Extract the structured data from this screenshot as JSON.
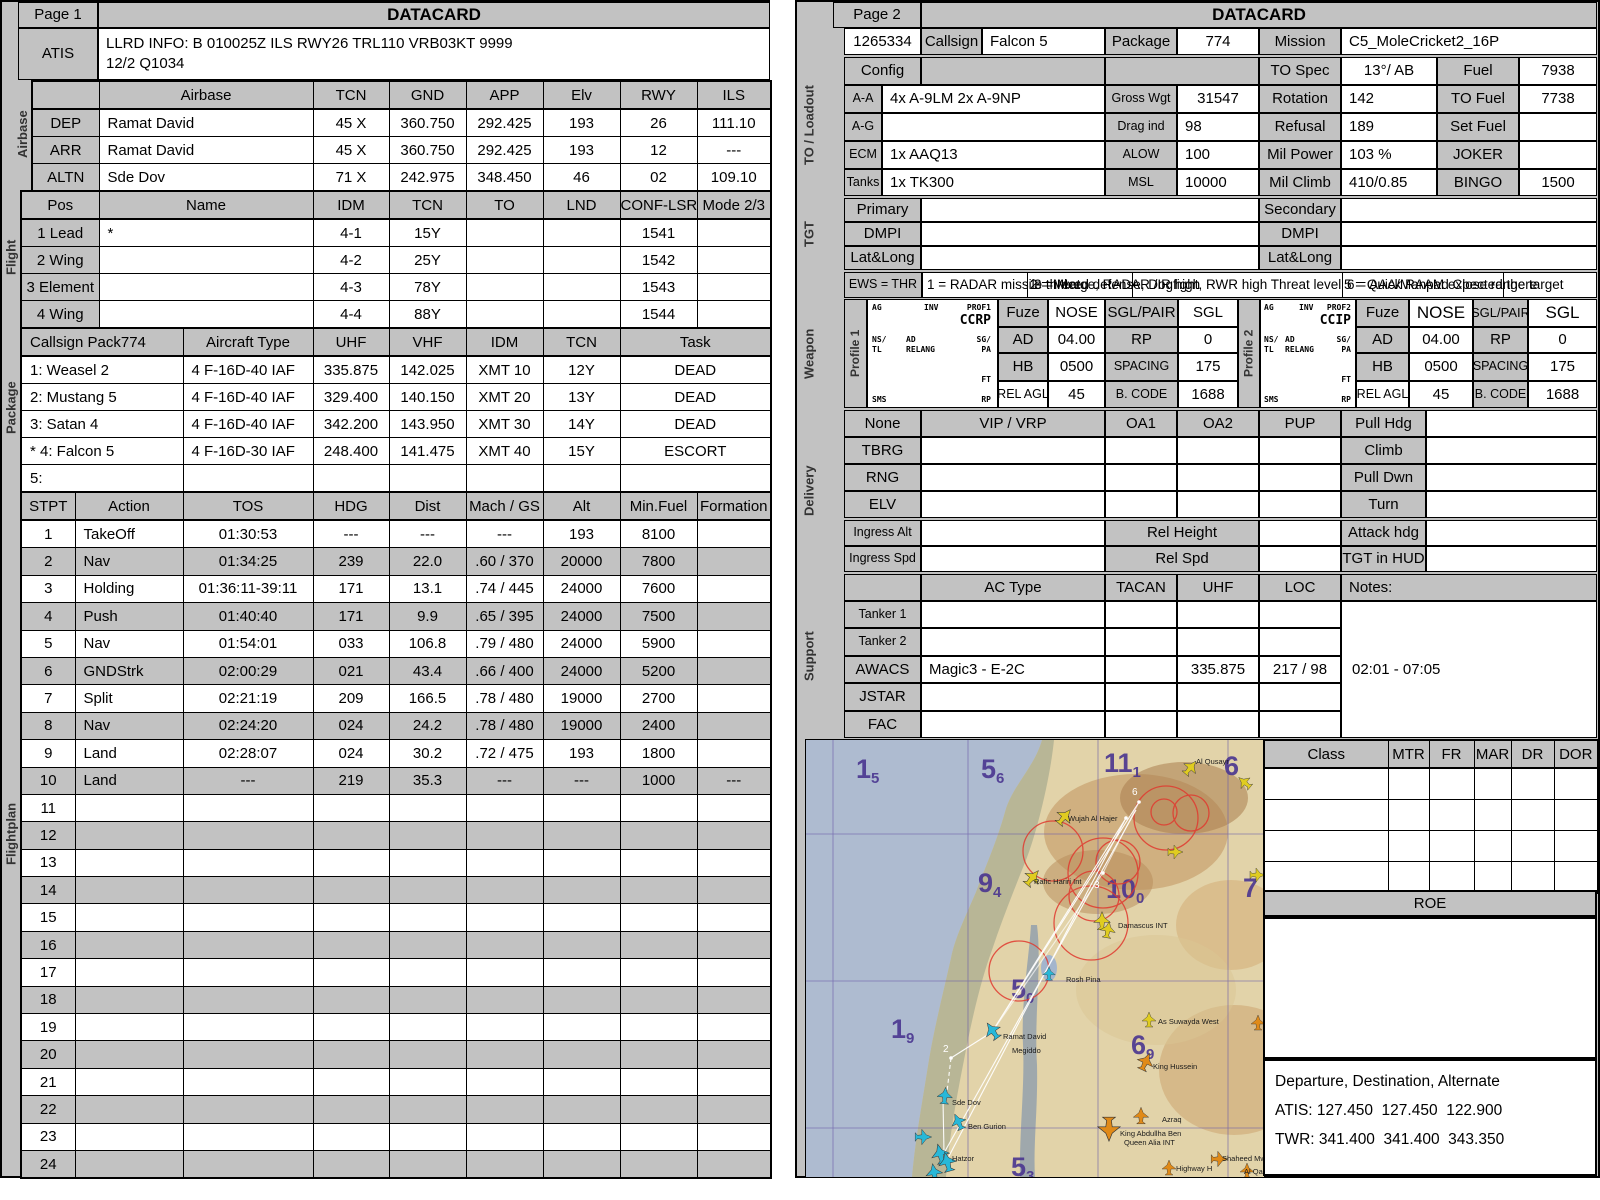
{
  "colors": {
    "panel_gray": "#c2c2c2",
    "cell_white": "#ffffff",
    "border_black": "#000000",
    "map_sea": "#aebbd0",
    "map_land": "#e2d3a9",
    "threat_red": "#e03a30",
    "grid_purple": "#4a3590",
    "route_white": "#ffffff",
    "cyan_icon": "#28b8d8",
    "yellow_icon": "#e0cc20",
    "orange_icon": "#e08a18"
  },
  "page1": {
    "header": {
      "page_label": "Page 1",
      "title": "DATACARD"
    },
    "atis": {
      "label": "ATIS",
      "line1": "LLRD INFO: B 010025Z ILS RWY26 TRL110 VRB03KT 9999",
      "line2": "12/2 Q1034"
    },
    "airbase": {
      "rail": "Airbase",
      "headers": [
        "",
        "Airbase",
        "TCN",
        "GND",
        "APP",
        "Elv",
        "RWY",
        "ILS"
      ],
      "rows": [
        [
          "DEP",
          "Ramat David",
          "45 X",
          "360.750",
          "292.425",
          "193",
          "26",
          "111.10"
        ],
        [
          "ARR",
          "Ramat David",
          "45 X",
          "360.750",
          "292.425",
          "193",
          "12",
          "---"
        ],
        [
          "ALTN",
          "Sde Dov",
          "71 X",
          "242.975",
          "348.450",
          "46",
          "02",
          "109.10"
        ]
      ]
    },
    "flight": {
      "rail": "Flight",
      "headers": [
        "Pos",
        "Name",
        "IDM",
        "TCN",
        "TO",
        "LND",
        "CONF-LSR",
        "Mode 2/3"
      ],
      "rows": [
        [
          "1 Lead",
          "*",
          "4-1",
          "15Y",
          "",
          "",
          "1541",
          ""
        ],
        [
          "2 Wing",
          "",
          "4-2",
          "25Y",
          "",
          "",
          "1542",
          ""
        ],
        [
          "3 Element",
          "",
          "4-3",
          "78Y",
          "",
          "",
          "1543",
          ""
        ],
        [
          "4 Wing",
          "",
          "4-4",
          "88Y",
          "",
          "",
          "1544",
          ""
        ]
      ]
    },
    "package": {
      "rail": "Package",
      "callsign_label": "Callsign Pack",
      "pack_number": "774",
      "headers": [
        "Aircraft Type",
        "UHF",
        "VHF",
        "IDM",
        "TCN",
        "Task"
      ],
      "rows": [
        [
          "1: Weasel 2",
          "4 F-16D-40 IAF",
          "335.875",
          "142.025",
          "XMT 10",
          "12Y",
          "DEAD"
        ],
        [
          "2: Mustang 5",
          "4 F-16D-40 IAF",
          "329.400",
          "140.150",
          "XMT 20",
          "13Y",
          "DEAD"
        ],
        [
          "3: Satan 4",
          "4 F-16D-40 IAF",
          "342.200",
          "143.950",
          "XMT 30",
          "14Y",
          "DEAD"
        ],
        [
          "* 4: Falcon 5",
          "4 F-16D-30 IAF",
          "248.400",
          "141.475",
          "XMT 40",
          "15Y",
          "ESCORT"
        ],
        [
          "5:",
          "",
          "",
          "",
          "",
          "",
          ""
        ]
      ]
    },
    "flightplan": {
      "rail": "Flightplan",
      "headers": [
        "STPT",
        "Action",
        "TOS",
        "HDG",
        "Dist",
        "Mach / GS",
        "Alt",
        "Min.Fuel",
        "Formation"
      ],
      "rows": [
        [
          "1",
          "TakeOff",
          "01:30:53",
          "---",
          "---",
          "---",
          "193",
          "8100",
          ""
        ],
        [
          "2",
          "Nav",
          "01:34:25",
          "239",
          "22.0",
          ".60 / 370",
          "20000",
          "7800",
          ""
        ],
        [
          "3",
          "Holding",
          "01:36:11-39:11",
          "171",
          "13.1",
          ".74 / 445",
          "24000",
          "7600",
          ""
        ],
        [
          "4",
          "Push",
          "01:40:40",
          "171",
          "9.9",
          ".65 / 395",
          "24000",
          "7500",
          ""
        ],
        [
          "5",
          "Nav",
          "01:54:01",
          "033",
          "106.8",
          ".79 / 480",
          "24000",
          "5900",
          ""
        ],
        [
          "6",
          "GNDStrk",
          "02:00:29",
          "021",
          "43.4",
          ".66 / 400",
          "24000",
          "5200",
          ""
        ],
        [
          "7",
          "Split",
          "02:21:19",
          "209",
          "166.5",
          ".78 / 480",
          "19000",
          "2700",
          ""
        ],
        [
          "8",
          "Nav",
          "02:24:20",
          "024",
          "24.2",
          ".78 / 480",
          "19000",
          "2400",
          ""
        ],
        [
          "9",
          "Land",
          "02:28:07",
          "024",
          "30.2",
          ".72 / 475",
          "193",
          "1800",
          ""
        ],
        [
          "10",
          "Land",
          "---",
          "219",
          "35.3",
          "---",
          "---",
          "1000",
          "---"
        ],
        [
          "11",
          "",
          "",
          "",
          "",
          "",
          "",
          "",
          ""
        ],
        [
          "12",
          "",
          "",
          "",
          "",
          "",
          "",
          "",
          ""
        ],
        [
          "13",
          "",
          "",
          "",
          "",
          "",
          "",
          "",
          ""
        ],
        [
          "14",
          "",
          "",
          "",
          "",
          "",
          "",
          "",
          ""
        ],
        [
          "15",
          "",
          "",
          "",
          "",
          "",
          "",
          "",
          ""
        ],
        [
          "16",
          "",
          "",
          "",
          "",
          "",
          "",
          "",
          ""
        ],
        [
          "17",
          "",
          "",
          "",
          "",
          "",
          "",
          "",
          ""
        ],
        [
          "18",
          "",
          "",
          "",
          "",
          "",
          "",
          "",
          ""
        ],
        [
          "19",
          "",
          "",
          "",
          "",
          "",
          "",
          "",
          ""
        ],
        [
          "20",
          "",
          "",
          "",
          "",
          "",
          "",
          "",
          ""
        ],
        [
          "21",
          "",
          "",
          "",
          "",
          "",
          "",
          "",
          ""
        ],
        [
          "22",
          "",
          "",
          "",
          "",
          "",
          "",
          "",
          ""
        ],
        [
          "23",
          "",
          "",
          "",
          "",
          "",
          "",
          "",
          ""
        ],
        [
          "24",
          "",
          "",
          "",
          "",
          "",
          "",
          "",
          ""
        ]
      ]
    }
  },
  "page2": {
    "header": {
      "page_label": "Page 2",
      "title": "DATACARD"
    },
    "id_row": {
      "id": "1265334",
      "callsign_label": "Callsign",
      "callsign": "Falcon 5",
      "package_label": "Package",
      "package": "774",
      "mission_label": "Mission",
      "mission": "C5_MoleCricket2_16P"
    },
    "loadout": {
      "rail": "TO / Loadout",
      "config_label": "Config",
      "to_spec_label": "TO Spec",
      "to_spec": "13°/ AB",
      "fuel_label": "Fuel",
      "fuel": "7938",
      "rows": [
        [
          "A-A",
          "4x A-9LM 2x A-9NP",
          "Gross Wgt",
          "31547",
          "Rotation",
          "142",
          "TO Fuel",
          "7738"
        ],
        [
          "A-G",
          "",
          "Drag ind",
          "98",
          "Refusal",
          "189",
          "Set Fuel",
          ""
        ],
        [
          "ECM",
          "1x AAQ13",
          "ALOW",
          "100",
          "Mil Power",
          "103 %",
          "JOKER",
          ""
        ],
        [
          "Tanks",
          "1x TK300",
          "MSL",
          "10000",
          "Mil Climb",
          "410/0.85",
          "BINGO",
          "1500"
        ]
      ]
    },
    "tgt": {
      "rail": "TGT",
      "rows": [
        [
          "Primary",
          "Secondary"
        ],
        [
          "DMPI",
          "DMPI"
        ],
        [
          "Lat&Long",
          "Lat&Long"
        ]
      ]
    },
    "ews": {
      "label": "EWS = THR",
      "fragments": [
        "1 = RADAR missile threat",
        "2 = Mixed defense, Dogfight, RWR high Threat level",
        "3 = Merge, RADAR /IR high",
        "5 = Quick RAAM expected there",
        "6 = AAA/Manpad Close range target"
      ]
    },
    "weapon": {
      "rail": "Weapon",
      "profiles": [
        {
          "rail": "Profile 1",
          "ag": "AG",
          "inv": "INV",
          "prof": "PROF1",
          "mode": "CCRP",
          "ns": "NS/",
          "tl": "TL",
          "ad": "AD",
          "relang": "RELANG",
          "sg": "SG/",
          "pa": "PA",
          "ft": "FT",
          "sms": "SMS",
          "rp": "RP",
          "fields": [
            [
              "Fuze",
              "NOSE"
            ],
            [
              "AD",
              "04.00"
            ],
            [
              "HB",
              "0500"
            ],
            [
              "REL AGL",
              "45"
            ]
          ],
          "fields2": [
            [
              "SGL/PAIR",
              "SGL"
            ],
            [
              "RP",
              "0"
            ],
            [
              "SPACING",
              "175"
            ],
            [
              "B. CODE",
              "1688"
            ]
          ]
        },
        {
          "rail": "Profile 2",
          "ag": "AG",
          "inv": "INV",
          "prof": "PROF2",
          "mode": "CCIP",
          "ns": "NS/",
          "tl": "TL",
          "ad": "AD",
          "relang": "RELANG",
          "sg": "SG/",
          "pa": "PA",
          "ft": "FT",
          "sms": "SMS",
          "rp": "RP",
          "fields": [
            [
              "Fuze",
              "NOSE"
            ],
            [
              "AD",
              "04.00"
            ],
            [
              "HB",
              "0500"
            ],
            [
              "REL AGL",
              "45"
            ]
          ],
          "fields2": [
            [
              "SGL/PAIR",
              "SGL"
            ],
            [
              "RP",
              "0"
            ],
            [
              "SPACING",
              "175"
            ],
            [
              "B. CODE",
              "1688"
            ]
          ]
        }
      ]
    },
    "delivery": {
      "rail": "Delivery",
      "header": [
        "None",
        "VIP / VRP",
        "OA1",
        "OA2",
        "PUP",
        "Pull Hdg"
      ],
      "rows": [
        [
          "TBRG",
          "Climb"
        ],
        [
          "RNG",
          "Pull Dwn"
        ],
        [
          "ELV",
          "Turn"
        ]
      ],
      "ingress": [
        [
          "Ingress Alt",
          "Rel Height",
          "Attack hdg"
        ],
        [
          "Ingress Spd",
          "Rel Spd",
          "TGT in HUD"
        ]
      ]
    },
    "support": {
      "rail": "Support",
      "headers": [
        "AC Type",
        "TACAN",
        "UHF",
        "LOC",
        "Notes:"
      ],
      "rows": [
        [
          "Tanker 1",
          "",
          "",
          "",
          ""
        ],
        [
          "Tanker 2",
          "",
          "",
          "",
          ""
        ],
        [
          "AWACS",
          "Magic3 - E-2C",
          "",
          "335.875",
          "217 / 98"
        ],
        [
          "JSTAR",
          "",
          "",
          "",
          ""
        ],
        [
          "FAC",
          "",
          "",
          "",
          ""
        ]
      ],
      "notes": "02:01 - 07:05"
    },
    "class_table": {
      "headers": [
        "Class",
        "MTR",
        "FR",
        "MAR",
        "DR",
        "DOR"
      ],
      "rows": [
        [
          "",
          "",
          "",
          "",
          "",
          ""
        ],
        [
          "",
          "",
          "",
          "",
          "",
          ""
        ],
        [
          "",
          "",
          "",
          "",
          "",
          ""
        ],
        [
          "",
          "",
          "",
          "",
          "",
          ""
        ]
      ]
    },
    "roe": {
      "title": "ROE"
    },
    "freqs": {
      "line1": "Departure, Destination, Alternate",
      "atis": "ATIS: 127.450  127.450  122.900",
      "twr": "TWR: 341.400  341.400  343.350"
    },
    "map": {
      "grid_numbers": [
        {
          "main": "1",
          "sub": "5"
        },
        {
          "main": "5",
          "sub": "6"
        },
        {
          "main": "11",
          "sub": "1"
        },
        {
          "main": "6",
          "sub": ""
        },
        {
          "main": "9",
          "sub": "4"
        },
        {
          "main": "10",
          "sub": "0"
        },
        {
          "main": "7",
          "sub": ""
        },
        {
          "main": "1",
          "sub": "9"
        },
        {
          "main": "5",
          "sub": "0"
        },
        {
          "main": "6",
          "sub": "9"
        },
        {
          "main": "5",
          "sub": "3"
        }
      ],
      "waypoint_labels": [
        "2",
        "3",
        "6"
      ],
      "places": [
        "Al Qusayr",
        "Wujah Al Hajer",
        "Rafic Hariri Int",
        "Damascus INT",
        "Rosh Pina",
        "As Suwayda West",
        "Ramat David",
        "Megiddo",
        "King Hussein",
        "Sde Dov",
        "Ben Gurion",
        "Azraq",
        "King Abdullha Ben",
        "Queen Alia INT",
        "Highway H",
        "Hatzor",
        "Shaheed Mwaffaq",
        "Al Qadhi"
      ]
    }
  }
}
